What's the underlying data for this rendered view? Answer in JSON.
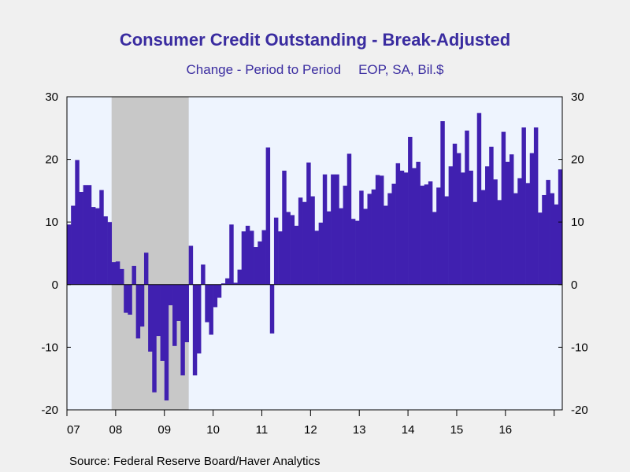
{
  "chart_data": {
    "type": "bar",
    "title": "Consumer Credit Outstanding - Break-Adjusted",
    "subtitle_parts": [
      "Change - Period to Period",
      "EOP, SA, Bil.$"
    ],
    "source": "Source:  Federal Reserve Board/Haver Analytics",
    "ylim": [
      -20,
      30
    ],
    "yticks": [
      -20,
      -10,
      0,
      10,
      20,
      30
    ],
    "x_start": "2007-01",
    "x_end": "2016-12",
    "xtick_labels": [
      "07",
      "08",
      "09",
      "10",
      "11",
      "12",
      "13",
      "14",
      "15",
      "16"
    ],
    "recession": {
      "start": "2007-12",
      "end": "2009-06"
    },
    "colors": {
      "bars": "#4020b0",
      "recession": "#c8c8c8",
      "plot_background": "#eef4fe",
      "page_background": "#f0f0f0",
      "title": "#3a2ca0"
    },
    "grid": false,
    "series": [
      {
        "values": [
          9.6,
          12.6,
          19.9,
          14.8,
          15.9,
          15.9,
          12.4,
          12.2,
          15.1,
          10.9,
          10.0,
          3.6,
          3.7,
          2.5,
          -4.5,
          -4.8,
          3.0,
          -8.6,
          -6.7,
          5.1,
          -10.7,
          -17.2,
          -8.2,
          -12.2,
          -18.5,
          -3.3,
          -9.8,
          -5.8,
          -14.5,
          -9.2,
          6.2,
          -14.5,
          -11.0,
          3.2,
          -6.0,
          -8.0,
          -3.6,
          -2.1,
          0.2,
          1.0,
          9.6,
          0.3,
          2.4,
          8.5,
          9.4,
          8.6,
          6.0,
          6.9,
          8.7,
          21.9,
          -7.8,
          10.7,
          8.5,
          18.2,
          11.6,
          11.1,
          9.4,
          13.9,
          13.2,
          19.5,
          14.1,
          8.6,
          9.9,
          17.6,
          11.7,
          17.6,
          17.6,
          12.2,
          15.8,
          20.9,
          10.5,
          10.2,
          15.0,
          12.1,
          14.5,
          15.2,
          17.5,
          17.4,
          12.6,
          14.6,
          16.1,
          19.4,
          18.2,
          17.9,
          23.6,
          18.6,
          19.6,
          15.8,
          16.0,
          16.5,
          11.6,
          15.5,
          26.1,
          14.1,
          18.9,
          22.5,
          21.0,
          17.9,
          24.6,
          18.2,
          13.2,
          27.4,
          15.1,
          18.9,
          22.0,
          16.8,
          13.5,
          24.4,
          19.6,
          20.8,
          14.6,
          17.0,
          25.1,
          16.2,
          21.0,
          25.1,
          11.5,
          14.3,
          16.7,
          14.6
        ]
      }
    ],
    "tail_values": [
      12.8,
      18.4
    ]
  }
}
